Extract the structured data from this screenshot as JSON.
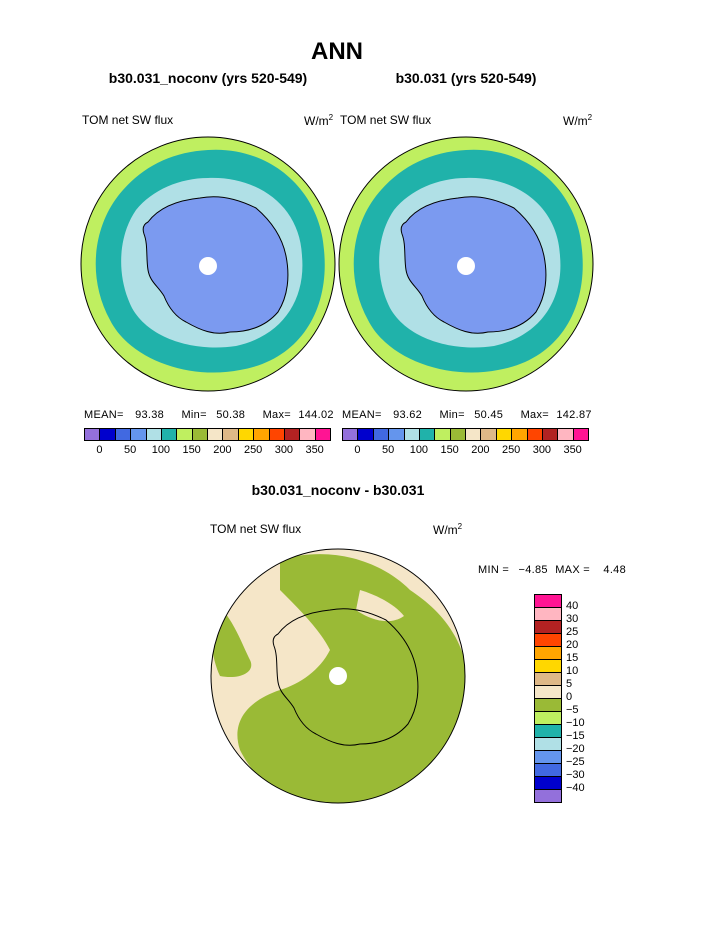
{
  "page": {
    "title": "ANN"
  },
  "panels": [
    {
      "case_title": "b30.031_noconv (yrs 520-549)",
      "variable_label": "TOM net SW flux",
      "units": "W/m",
      "units_sup": "2",
      "stats": {
        "mean_label": "MEAN=",
        "mean": "93.38",
        "min_label": "Min=",
        "min": "50.38",
        "max_label": "Max=",
        "max": "144.02"
      },
      "colorbar_ticks": [
        "0",
        "50",
        "100",
        "150",
        "200",
        "250",
        "300",
        "350"
      ]
    },
    {
      "case_title": "b30.031 (yrs 520-549)",
      "variable_label": "TOM net SW flux",
      "units": "W/m",
      "units_sup": "2",
      "stats": {
        "mean_label": "MEAN=",
        "mean": "93.62",
        "min_label": "Min=",
        "min": "50.45",
        "max_label": "Max=",
        "max": "142.87"
      },
      "colorbar_ticks": [
        "0",
        "50",
        "100",
        "150",
        "200",
        "250",
        "300",
        "350"
      ]
    }
  ],
  "diff_panel": {
    "case_title": "b30.031_noconv - b30.031",
    "variable_label": "TOM net SW flux",
    "units": "W/m",
    "units_sup": "2",
    "stats": {
      "min_label": "MIN =",
      "min": "−4.85",
      "max_label": "MAX =",
      "max": "4.48"
    },
    "colorbar_ticks": [
      "40",
      "30",
      "25",
      "20",
      "15",
      "10",
      "5",
      "0",
      "−5",
      "−10",
      "−15",
      "−20",
      "−25",
      "−30",
      "−40"
    ]
  },
  "colors": {
    "abs_scale": [
      "#9370db",
      "#0000cd",
      "#4169e1",
      "#6495ed",
      "#b0e0e6",
      "#20b2aa",
      "#bfef60",
      "#9aba36",
      "#f5e6c8",
      "#deb887",
      "#ffd700",
      "#ffa500",
      "#ff4500",
      "#b22222",
      "#ffb6c1",
      "#ff1493"
    ],
    "diff_scale": [
      "#ff1493",
      "#ffb6c1",
      "#b22222",
      "#ff4500",
      "#ffa500",
      "#ffd700",
      "#deb887",
      "#f5e6c8",
      "#9aba36",
      "#bfef60",
      "#20b2aa",
      "#b0e0e6",
      "#6495ed",
      "#4169e1",
      "#0000cd",
      "#9370db"
    ]
  }
}
